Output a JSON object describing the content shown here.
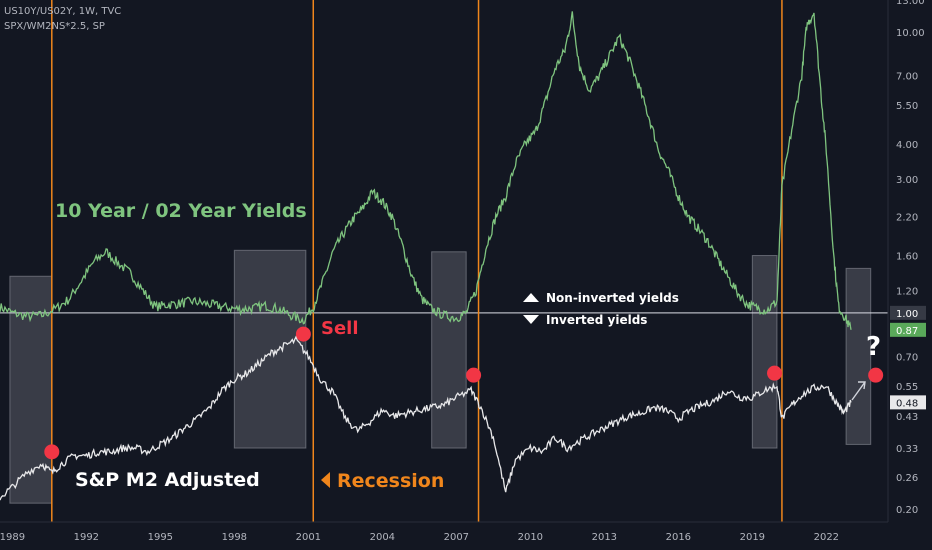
{
  "header": {
    "line1": "US10Y/US02Y, 1W, TVC",
    "line2": "SPX/WM2NS*2.5, SP"
  },
  "colors": {
    "background": "#131722",
    "yield_line": "#7fc47f",
    "spx_line": "#e8e8ea",
    "recession_line": "#f0861c",
    "sell_dot": "#f23645",
    "box_fill": "#d1d4dc",
    "baseline": "#d1d4dc"
  },
  "chart_data": {
    "type": "line",
    "title": "",
    "xlabel": "",
    "ylabel": "",
    "x_ticks": [
      "1989",
      "1992",
      "1995",
      "1998",
      "2001",
      "2004",
      "2007",
      "2010",
      "2013",
      "2016",
      "2019",
      "2022"
    ],
    "y_ticks": [
      "13.00",
      "10.00",
      "7.00",
      "5.50",
      "4.00",
      "3.00",
      "2.20",
      "1.60",
      "1.20",
      "1.00",
      "0.70",
      "0.55",
      "0.43",
      "0.33",
      "0.26",
      "0.20"
    ],
    "y_scale": "log",
    "ylim": [
      0.18,
      13.0
    ],
    "xlim": [
      1988.5,
      2024.5
    ],
    "series": [
      {
        "name": "10 Year / 02 Year Yields",
        "color": "#7fc47f",
        "last_value": "0.87",
        "points": [
          [
            1988.5,
            1.05
          ],
          [
            1989.0,
            1.0
          ],
          [
            1989.6,
            0.97
          ],
          [
            1990.2,
            0.98
          ],
          [
            1990.8,
            1.04
          ],
          [
            1991.3,
            1.12
          ],
          [
            1991.8,
            1.3
          ],
          [
            1992.3,
            1.52
          ],
          [
            1992.8,
            1.65
          ],
          [
            1993.3,
            1.5
          ],
          [
            1993.8,
            1.38
          ],
          [
            1994.3,
            1.2
          ],
          [
            1994.8,
            1.05
          ],
          [
            1995.3,
            1.07
          ],
          [
            1995.8,
            1.08
          ],
          [
            1996.3,
            1.1
          ],
          [
            1996.8,
            1.08
          ],
          [
            1997.3,
            1.06
          ],
          [
            1997.8,
            1.04
          ],
          [
            1998.3,
            1.03
          ],
          [
            1998.8,
            1.04
          ],
          [
            1999.3,
            1.06
          ],
          [
            1999.8,
            1.03
          ],
          [
            2000.3,
            0.98
          ],
          [
            2000.8,
            0.94
          ],
          [
            2001.2,
            1.05
          ],
          [
            2001.6,
            1.3
          ],
          [
            2002.0,
            1.65
          ],
          [
            2002.4,
            1.9
          ],
          [
            2002.8,
            2.15
          ],
          [
            2003.2,
            2.35
          ],
          [
            2003.6,
            2.7
          ],
          [
            2004.0,
            2.5
          ],
          [
            2004.4,
            2.2
          ],
          [
            2004.8,
            1.75
          ],
          [
            2005.2,
            1.35
          ],
          [
            2005.6,
            1.12
          ],
          [
            2006.0,
            1.03
          ],
          [
            2006.5,
            0.98
          ],
          [
            2007.0,
            0.96
          ],
          [
            2007.4,
            1.0
          ],
          [
            2007.8,
            1.2
          ],
          [
            2008.2,
            1.7
          ],
          [
            2008.6,
            2.2
          ],
          [
            2009.0,
            2.6
          ],
          [
            2009.4,
            3.4
          ],
          [
            2009.8,
            4.0
          ],
          [
            2010.2,
            4.4
          ],
          [
            2010.6,
            5.6
          ],
          [
            2011.0,
            7.4
          ],
          [
            2011.4,
            8.6
          ],
          [
            2011.7,
            11.5
          ],
          [
            2012.0,
            7.5
          ],
          [
            2012.4,
            6.2
          ],
          [
            2012.8,
            7.0
          ],
          [
            2013.2,
            8.2
          ],
          [
            2013.6,
            9.6
          ],
          [
            2014.0,
            8.0
          ],
          [
            2014.4,
            6.4
          ],
          [
            2014.8,
            5.0
          ],
          [
            2015.2,
            3.8
          ],
          [
            2015.6,
            3.2
          ],
          [
            2016.0,
            2.6
          ],
          [
            2016.4,
            2.2
          ],
          [
            2016.8,
            2.0
          ],
          [
            2017.2,
            1.8
          ],
          [
            2017.6,
            1.55
          ],
          [
            2018.0,
            1.35
          ],
          [
            2018.4,
            1.18
          ],
          [
            2018.8,
            1.07
          ],
          [
            2019.2,
            1.04
          ],
          [
            2019.6,
            1.02
          ],
          [
            2020.0,
            1.1
          ],
          [
            2020.2,
            2.8
          ],
          [
            2020.6,
            4.5
          ],
          [
            2021.0,
            7.0
          ],
          [
            2021.2,
            10.5
          ],
          [
            2021.5,
            11.8
          ],
          [
            2021.8,
            5.8
          ],
          [
            2022.0,
            3.8
          ],
          [
            2022.3,
            1.6
          ],
          [
            2022.5,
            1.05
          ],
          [
            2022.8,
            0.95
          ],
          [
            2023.0,
            0.87
          ]
        ]
      },
      {
        "name": "S&P M2 Adjusted",
        "color": "#e8e8ea",
        "last_value": "0.48",
        "points": [
          [
            1988.5,
            0.22
          ],
          [
            1989.0,
            0.24
          ],
          [
            1989.6,
            0.27
          ],
          [
            1990.2,
            0.29
          ],
          [
            1990.6,
            0.27
          ],
          [
            1991.0,
            0.29
          ],
          [
            1991.5,
            0.31
          ],
          [
            1992.0,
            0.31
          ],
          [
            1992.5,
            0.32
          ],
          [
            1993.0,
            0.32
          ],
          [
            1993.5,
            0.33
          ],
          [
            1994.0,
            0.33
          ],
          [
            1994.5,
            0.32
          ],
          [
            1995.0,
            0.34
          ],
          [
            1995.5,
            0.36
          ],
          [
            1996.0,
            0.39
          ],
          [
            1996.5,
            0.42
          ],
          [
            1997.0,
            0.46
          ],
          [
            1997.5,
            0.53
          ],
          [
            1998.0,
            0.58
          ],
          [
            1998.5,
            0.61
          ],
          [
            1999.0,
            0.66
          ],
          [
            1999.5,
            0.72
          ],
          [
            2000.0,
            0.76
          ],
          [
            2000.5,
            0.8
          ],
          [
            2001.0,
            0.7
          ],
          [
            2001.5,
            0.58
          ],
          [
            2002.0,
            0.52
          ],
          [
            2002.5,
            0.42
          ],
          [
            2003.0,
            0.38
          ],
          [
            2003.5,
            0.41
          ],
          [
            2004.0,
            0.45
          ],
          [
            2004.5,
            0.43
          ],
          [
            2005.0,
            0.44
          ],
          [
            2005.5,
            0.45
          ],
          [
            2006.0,
            0.46
          ],
          [
            2006.5,
            0.47
          ],
          [
            2007.0,
            0.5
          ],
          [
            2007.6,
            0.53
          ],
          [
            2008.0,
            0.46
          ],
          [
            2008.5,
            0.36
          ],
          [
            2009.0,
            0.23
          ],
          [
            2009.4,
            0.3
          ],
          [
            2010.0,
            0.33
          ],
          [
            2010.5,
            0.32
          ],
          [
            2011.0,
            0.36
          ],
          [
            2011.5,
            0.33
          ],
          [
            2012.0,
            0.35
          ],
          [
            2012.5,
            0.37
          ],
          [
            2013.0,
            0.39
          ],
          [
            2013.5,
            0.41
          ],
          [
            2014.0,
            0.43
          ],
          [
            2014.5,
            0.44
          ],
          [
            2015.0,
            0.46
          ],
          [
            2015.5,
            0.45
          ],
          [
            2016.0,
            0.42
          ],
          [
            2016.5,
            0.45
          ],
          [
            2017.0,
            0.47
          ],
          [
            2017.5,
            0.49
          ],
          [
            2018.0,
            0.53
          ],
          [
            2018.5,
            0.5
          ],
          [
            2019.0,
            0.5
          ],
          [
            2019.5,
            0.53
          ],
          [
            2020.0,
            0.55
          ],
          [
            2020.2,
            0.42
          ],
          [
            2020.6,
            0.47
          ],
          [
            2021.0,
            0.51
          ],
          [
            2021.5,
            0.54
          ],
          [
            2022.0,
            0.55
          ],
          [
            2022.4,
            0.48
          ],
          [
            2022.7,
            0.44
          ],
          [
            2023.0,
            0.48
          ]
        ]
      }
    ],
    "recession_lines": [
      1990.6,
      2001.2,
      2007.9,
      2020.2
    ],
    "shaded_boxes": [
      {
        "x": [
          1988.9,
          1990.6
        ],
        "y": [
          0.21,
          1.35
        ]
      },
      {
        "x": [
          1998.0,
          2000.9
        ],
        "y": [
          0.33,
          1.67
        ]
      },
      {
        "x": [
          2006.0,
          2007.4
        ],
        "y": [
          0.33,
          1.65
        ]
      },
      {
        "x": [
          2019.0,
          2020.0
        ],
        "y": [
          0.33,
          1.6
        ]
      },
      {
        "x": [
          2022.8,
          2023.8
        ],
        "y": [
          0.34,
          1.44
        ]
      }
    ],
    "sell_points": [
      {
        "x": 1990.6,
        "y": 0.32
      },
      {
        "x": 2000.8,
        "y": 0.84
      },
      {
        "x": 2007.7,
        "y": 0.6
      },
      {
        "x": 2019.9,
        "y": 0.61
      },
      {
        "x": 2024.0,
        "y": 0.6
      }
    ],
    "baseline": 1.0,
    "annotations": {
      "yields_label": "10 Year / 02 Year Yields",
      "spx_label": "S&P M2 Adjusted",
      "sell_label": "Sell",
      "recession_label": "Recession",
      "non_inverted": "Non-inverted yields",
      "inverted": "Inverted yields",
      "question": "?"
    }
  }
}
